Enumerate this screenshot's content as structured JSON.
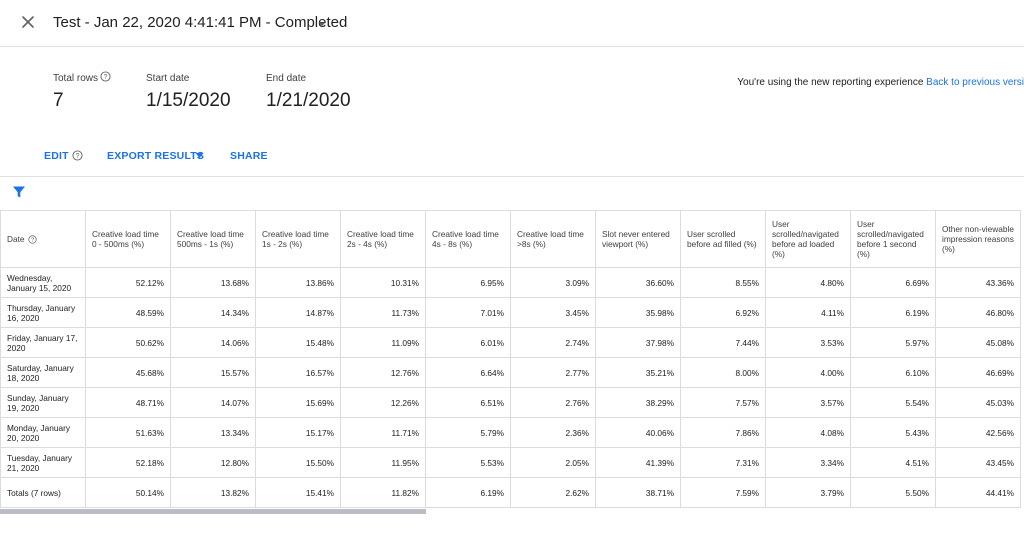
{
  "header": {
    "close_icon": "close-icon",
    "title": "Test - Jan 22, 2020 4:41:41 PM - Completed",
    "caret_icon": "caret-down-icon"
  },
  "summary": {
    "total_rows_label": "Total rows",
    "total_rows_value": "7",
    "start_date_label": "Start date",
    "start_date_value": "1/15/2020",
    "end_date_label": "End date",
    "end_date_value": "1/21/2020"
  },
  "banner": {
    "text": "You're using the new reporting experience",
    "link": "Back to previous versi"
  },
  "actions": {
    "edit": "EDIT",
    "export": "EXPORT RESULTS",
    "share": "SHARE"
  },
  "colors": {
    "accent": "#1a73e8",
    "border": "#dadce0",
    "scrollbar": "#babdc4"
  },
  "table": {
    "columns": [
      "Date",
      "Creative load time 0 - 500ms (%)",
      "Creative load time 500ms - 1s (%)",
      "Creative load time 1s - 2s (%)",
      "Creative load time 2s - 4s (%)",
      "Creative load time 4s - 8s (%)",
      "Creative load time >8s (%)",
      "Slot never entered viewport (%)",
      "User scrolled before ad filled (%)",
      "User scrolled/navigated before ad loaded (%)",
      "User scrolled/navigated before 1 second (%)",
      "Other non-viewable impression reasons (%)"
    ],
    "rows": [
      [
        "Wednesday, January 15, 2020",
        "52.12%",
        "13.68%",
        "13.86%",
        "10.31%",
        "6.95%",
        "3.09%",
        "36.60%",
        "8.55%",
        "4.80%",
        "6.69%",
        "43.36%"
      ],
      [
        "Thursday, January 16, 2020",
        "48.59%",
        "14.34%",
        "14.87%",
        "11.73%",
        "7.01%",
        "3.45%",
        "35.98%",
        "6.92%",
        "4.11%",
        "6.19%",
        "46.80%"
      ],
      [
        "Friday, January 17, 2020",
        "50.62%",
        "14.06%",
        "15.48%",
        "11.09%",
        "6.01%",
        "2.74%",
        "37.98%",
        "7.44%",
        "3.53%",
        "5.97%",
        "45.08%"
      ],
      [
        "Saturday, January 18, 2020",
        "45.68%",
        "15.57%",
        "16.57%",
        "12.76%",
        "6.64%",
        "2.77%",
        "35.21%",
        "8.00%",
        "4.00%",
        "6.10%",
        "46.69%"
      ],
      [
        "Sunday, January 19, 2020",
        "48.71%",
        "14.07%",
        "15.69%",
        "12.26%",
        "6.51%",
        "2.76%",
        "38.29%",
        "7.57%",
        "3.57%",
        "5.54%",
        "45.03%"
      ],
      [
        "Monday, January 20, 2020",
        "51.63%",
        "13.34%",
        "15.17%",
        "11.71%",
        "5.79%",
        "2.36%",
        "40.06%",
        "7.86%",
        "4.08%",
        "5.43%",
        "42.56%"
      ],
      [
        "Tuesday, January 21, 2020",
        "52.18%",
        "12.80%",
        "15.50%",
        "11.95%",
        "5.53%",
        "2.05%",
        "41.39%",
        "7.31%",
        "3.34%",
        "4.51%",
        "43.45%"
      ]
    ],
    "totals": [
      "Totals (7 rows)",
      "50.14%",
      "13.82%",
      "15.41%",
      "11.82%",
      "6.19%",
      "2.62%",
      "38.71%",
      "7.59%",
      "3.79%",
      "5.50%",
      "44.41%"
    ]
  }
}
